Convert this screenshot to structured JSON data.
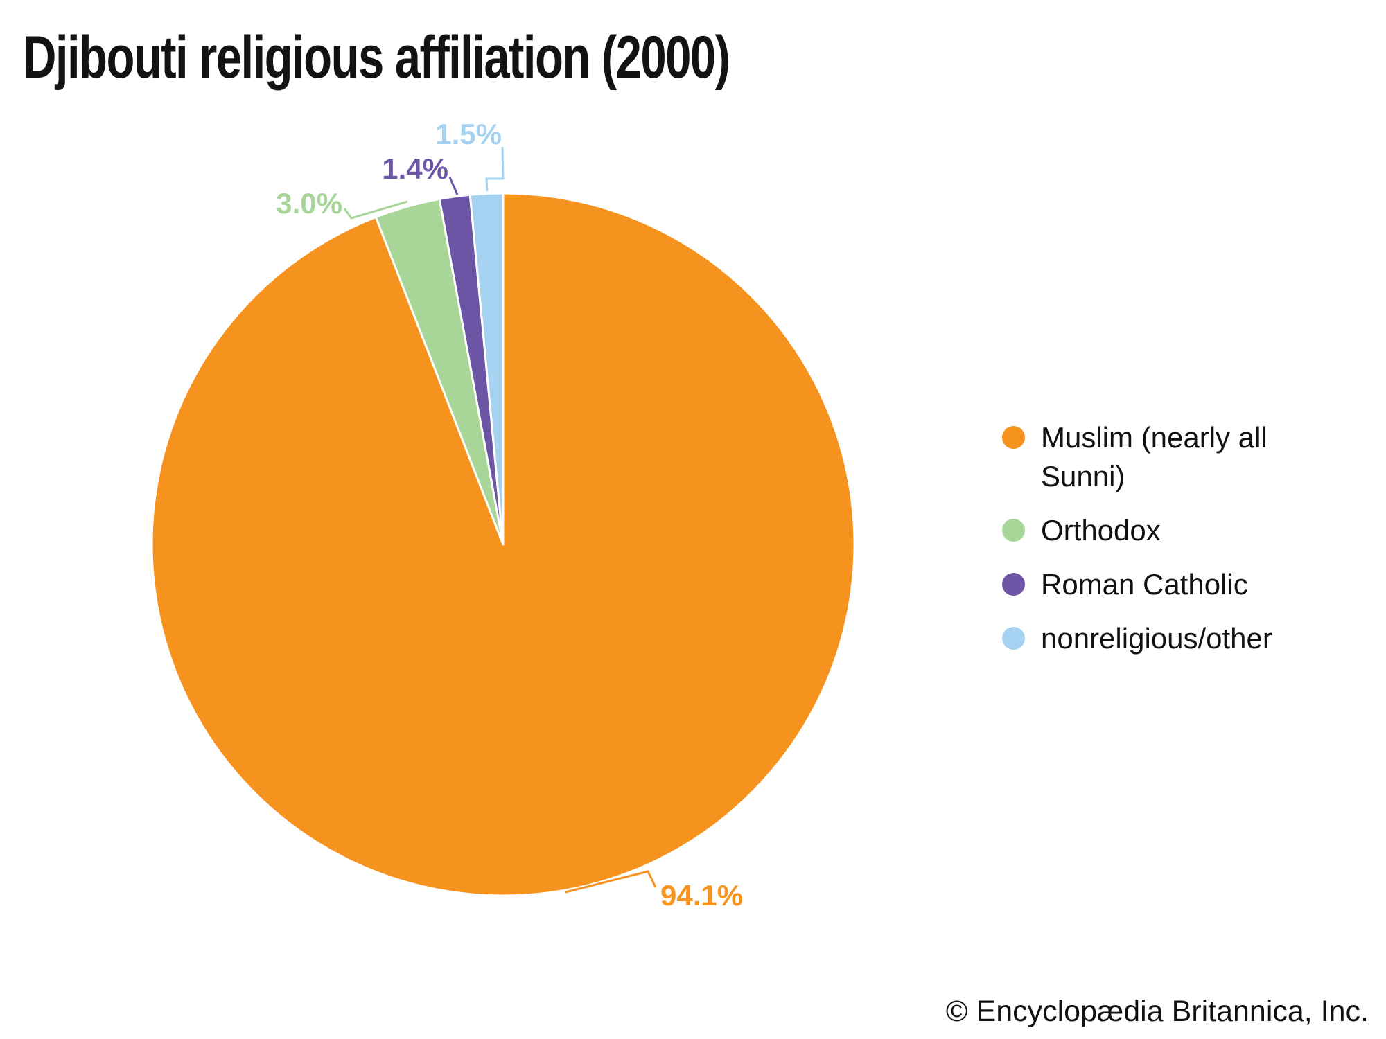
{
  "title": "Djibouti religious affiliation (2000)",
  "copyright": "© Encyclopædia Britannica, Inc.",
  "chart_data": {
    "type": "pie",
    "title": "Djibouti religious affiliation (2000)",
    "unit": "percent",
    "categories": [
      "Muslim (nearly all Sunni)",
      "Orthodox",
      "Roman Catholic",
      "nonreligious/other"
    ],
    "values": [
      94.1,
      3.0,
      1.4,
      1.5
    ],
    "value_labels": [
      "94.1%",
      "3.0%",
      "1.4%",
      "1.5%"
    ],
    "colors": [
      "#F6921E",
      "#A8D698",
      "#6B55A4",
      "#A5D2F0"
    ],
    "start_angle_deg": 0,
    "direction": "clockwise",
    "legend_position": "right",
    "slice_separator_color": "#ffffff"
  },
  "legend": {
    "items": [
      {
        "label": "Muslim (nearly all Sunni)",
        "color": "#F6921E"
      },
      {
        "label": "Orthodox",
        "color": "#A8D698"
      },
      {
        "label": "Roman Catholic",
        "color": "#6B55A4"
      },
      {
        "label": "nonreligious/other",
        "color": "#A5D2F0"
      }
    ]
  }
}
